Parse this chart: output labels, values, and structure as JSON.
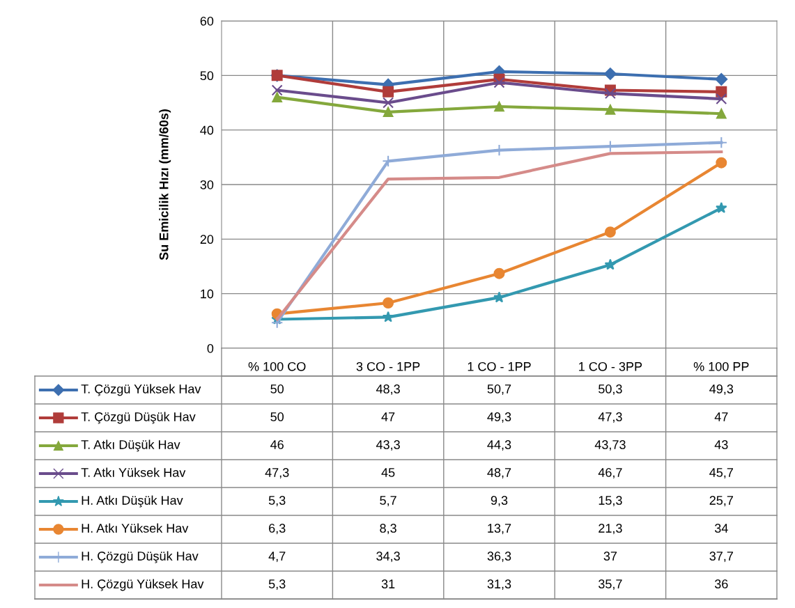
{
  "chart_data": {
    "type": "line",
    "ylabel": "Su Emicilik Hızı (mm/60s)",
    "categories": [
      "% 100 CO",
      "3 CO - 1PP",
      "1 CO - 1PP",
      "1 CO - 3PP",
      "% 100 PP"
    ],
    "ylim": [
      0,
      60
    ],
    "yticks": [
      0,
      10,
      20,
      30,
      40,
      50,
      60
    ],
    "grid": true,
    "legend": "bottom left",
    "series": [
      {
        "name": "T. Çözgü Yüksek Hav",
        "color": "#3d6fb0",
        "marker": "diamond",
        "values": [
          50,
          48.3,
          50.7,
          50.3,
          49.3
        ],
        "value_labels": [
          "50",
          "48,3",
          "50,7",
          "50,3",
          "49,3"
        ]
      },
      {
        "name": "T. Çözgü Düşük Hav",
        "color": "#b03c3a",
        "marker": "square",
        "values": [
          50,
          47,
          49.3,
          47.3,
          47
        ],
        "value_labels": [
          "50",
          "47",
          "49,3",
          "47,3",
          "47"
        ]
      },
      {
        "name": "T. Atkı Düşük Hav",
        "color": "#84a83c",
        "marker": "triangle",
        "values": [
          46,
          43.3,
          44.3,
          43.73,
          43
        ],
        "value_labels": [
          "46",
          "43,3",
          "44,3",
          "43,73",
          "43"
        ]
      },
      {
        "name": "T. Atkı Yüksek Hav",
        "color": "#6a4c8c",
        "marker": "cross",
        "values": [
          47.3,
          45,
          48.7,
          46.7,
          45.7
        ],
        "value_labels": [
          "47,3",
          "45",
          "48,7",
          "46,7",
          "45,7"
        ]
      },
      {
        "name": "H. Atkı Düşük Hav",
        "color": "#3399b0",
        "marker": "star",
        "values": [
          5.3,
          5.7,
          9.3,
          15.3,
          25.7
        ],
        "value_labels": [
          "5,3",
          "5,7",
          "9,3",
          "15,3",
          "25,7"
        ]
      },
      {
        "name": "H. Atkı Yüksek Hav",
        "color": "#e88632",
        "marker": "circle",
        "values": [
          6.3,
          8.3,
          13.7,
          21.3,
          34
        ],
        "value_labels": [
          "6,3",
          "8,3",
          "13,7",
          "21,3",
          "34"
        ]
      },
      {
        "name": "H. Çözgü Düşük Hav",
        "color": "#8fabd8",
        "marker": "plus",
        "values": [
          4.7,
          34.3,
          36.3,
          37,
          37.7
        ],
        "value_labels": [
          "4,7",
          "34,3",
          "36,3",
          "37",
          "37,7"
        ]
      },
      {
        "name": "H. Çözgü Yüksek Hav",
        "color": "#d58b89",
        "marker": "none",
        "values": [
          5.3,
          31,
          31.3,
          35.7,
          36
        ],
        "value_labels": [
          "5,3",
          "31",
          "31,3",
          "35,7",
          "36"
        ]
      }
    ]
  }
}
